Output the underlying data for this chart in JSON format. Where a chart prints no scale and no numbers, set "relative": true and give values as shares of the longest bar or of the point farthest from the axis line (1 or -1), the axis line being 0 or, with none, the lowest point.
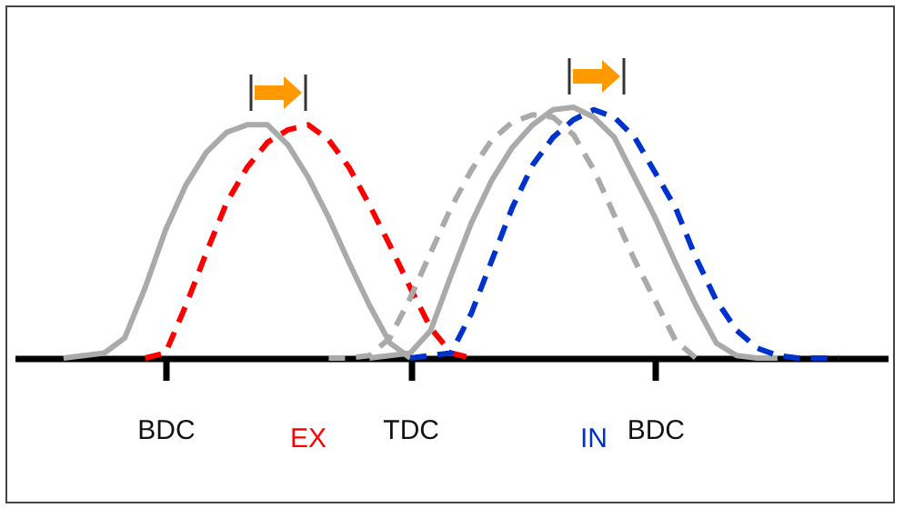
{
  "chart_data": {
    "type": "line",
    "relative": true,
    "categories": [
      null,
      null,
      null,
      null,
      null,
      null,
      null,
      "BDC",
      null,
      null,
      null,
      null,
      null,
      null,
      null,
      null,
      null,
      null,
      null,
      "TDC",
      null,
      null,
      null,
      null,
      null,
      null,
      null,
      null,
      null,
      null,
      null,
      "BDC",
      null,
      null,
      null,
      null,
      null,
      null,
      null,
      null,
      null,
      null,
      null
    ],
    "series": [
      {
        "color": "#aaaaaa",
        "line_style": "solid",
        "values": [
          null,
          null,
          0,
          0.01,
          0.02,
          0.08,
          0.28,
          0.51,
          0.69,
          0.82,
          0.9,
          0.93,
          0.93,
          0.85,
          0.72,
          0.56,
          0.38,
          0.21,
          0.06,
          0,
          null,
          null,
          null,
          null,
          null,
          null,
          null,
          null,
          null,
          null,
          null,
          null,
          null,
          null,
          null,
          null,
          null,
          null,
          null,
          null,
          null,
          null,
          null
        ]
      },
      {
        "name": "EX",
        "color": "#ff0000",
        "line_style": "dashed",
        "values": [
          null,
          null,
          null,
          null,
          null,
          null,
          0,
          0.02,
          0.21,
          0.42,
          0.62,
          0.76,
          0.86,
          0.91,
          0.93,
          0.87,
          0.76,
          0.61,
          0.45,
          0.28,
          0.12,
          0.02,
          0,
          null,
          null,
          null,
          null,
          null,
          null,
          null,
          null,
          null,
          null,
          null,
          null,
          null,
          null,
          null,
          null,
          null,
          null,
          null,
          null
        ]
      },
      {
        "color": "#aaaaaa",
        "line_style": "dashed",
        "values": [
          null,
          null,
          null,
          null,
          null,
          null,
          null,
          null,
          null,
          null,
          null,
          null,
          null,
          null,
          null,
          0,
          0,
          0.01,
          0.08,
          0.24,
          0.42,
          0.6,
          0.75,
          0.87,
          0.94,
          0.97,
          0.96,
          0.89,
          0.75,
          0.57,
          0.39,
          0.23,
          0.07,
          0,
          null,
          null,
          null,
          null,
          null,
          null,
          null,
          null,
          null
        ]
      },
      {
        "color": "#aaaaaa",
        "line_style": "solid",
        "values": [
          null,
          null,
          null,
          null,
          null,
          null,
          null,
          null,
          null,
          null,
          null,
          null,
          null,
          null,
          null,
          null,
          null,
          0,
          0.01,
          0.02,
          0.11,
          0.33,
          0.54,
          0.71,
          0.84,
          0.93,
          0.99,
          1,
          0.96,
          0.88,
          0.72,
          0.56,
          0.38,
          0.21,
          0.06,
          0.01,
          0,
          0,
          null,
          null,
          null,
          null,
          null
        ]
      },
      {
        "name": "IN",
        "color": "#0033cc",
        "line_style": "dashed",
        "values": [
          null,
          null,
          null,
          null,
          null,
          null,
          null,
          null,
          null,
          null,
          null,
          null,
          null,
          null,
          null,
          null,
          null,
          null,
          null,
          0,
          0.01,
          0.02,
          0.18,
          0.39,
          0.6,
          0.77,
          0.88,
          0.95,
          0.99,
          0.96,
          0.88,
          0.74,
          0.6,
          0.4,
          0.23,
          0.11,
          0.04,
          0.01,
          0,
          0,
          0,
          null,
          null
        ]
      }
    ]
  }
}
